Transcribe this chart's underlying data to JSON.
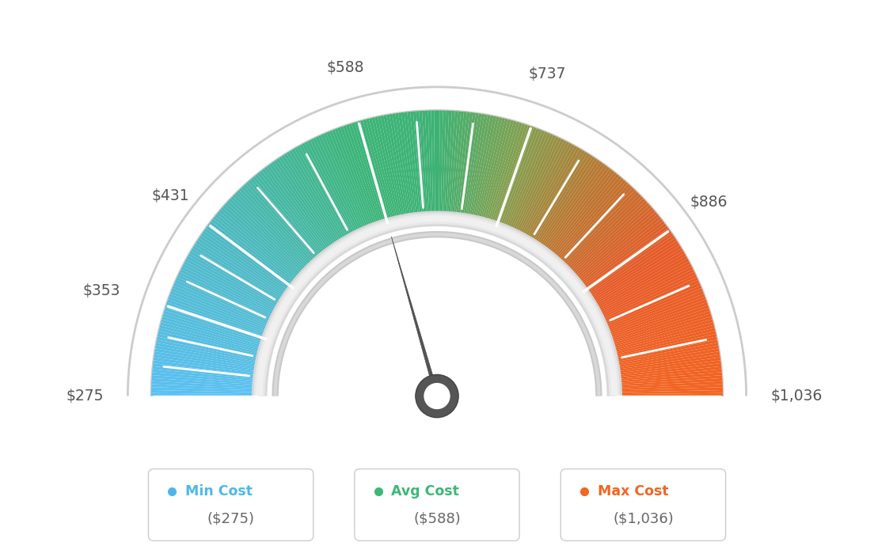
{
  "min_val": 275,
  "max_val": 1036,
  "avg_val": 588,
  "tick_values": [
    275,
    353,
    431,
    588,
    737,
    886,
    1036
  ],
  "tick_label_map": {
    "275": "$275",
    "353": "$353",
    "431": "$431",
    "588": "$588",
    "737": "$737",
    "886": "$886",
    "1036": "$1,036"
  },
  "legend": [
    {
      "label": "Min Cost",
      "value": "($275)",
      "color": "#4db8e8"
    },
    {
      "label": "Avg Cost",
      "value": "($588)",
      "color": "#3cb878"
    },
    {
      "label": "Max Cost",
      "value": "($1,036)",
      "color": "#f26522"
    }
  ],
  "color_stops": [
    [
      0.0,
      [
        91,
        192,
        242
      ]
    ],
    [
      0.2,
      [
        78,
        185,
        195
      ]
    ],
    [
      0.4,
      [
        60,
        180,
        120
      ]
    ],
    [
      0.5,
      [
        62,
        178,
        116
      ]
    ],
    [
      0.6,
      [
        130,
        160,
        80
      ]
    ],
    [
      0.7,
      [
        185,
        120,
        50
      ]
    ],
    [
      0.82,
      [
        230,
        90,
        40
      ]
    ],
    [
      1.0,
      [
        242,
        101,
        34
      ]
    ]
  ],
  "background_color": "#ffffff",
  "needle_color": "#555555",
  "n_segments": 300
}
